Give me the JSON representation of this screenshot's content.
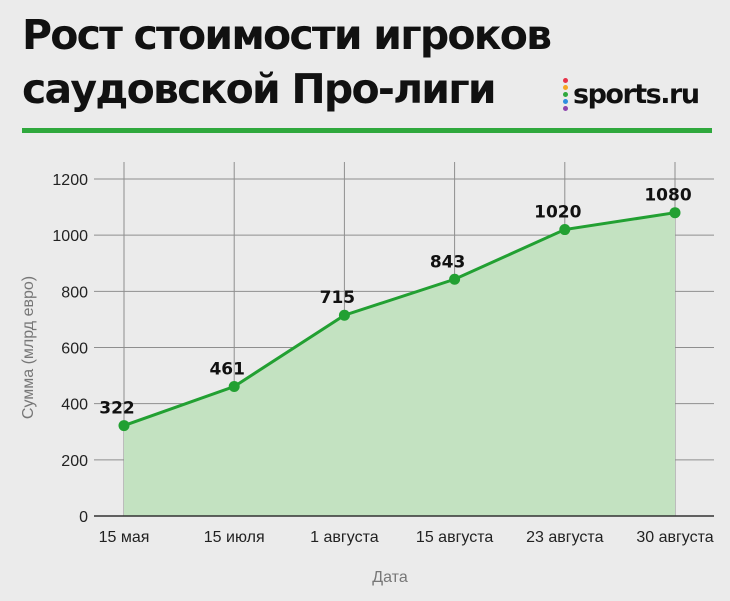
{
  "header": {
    "title_line1": "Рост стоимости игроков",
    "title_line2": "саудовской Про-лиги",
    "logo_text": "sports.ru",
    "logo_colors": [
      "#e7334a",
      "#f5a623",
      "#2fa83d",
      "#2d8ee0",
      "#8e44ad"
    ]
  },
  "colors": {
    "accent": "#2fa83d",
    "line": "#22a032",
    "area": "#c3e2c1",
    "grid": "#8e8e8e"
  },
  "chart_data": {
    "type": "area",
    "title": "Рост стоимости игроков саудовской Про-лиги",
    "xlabel": "Дата",
    "ylabel": "Сумма (млрд евро)",
    "categories": [
      "15 мая",
      "15 июля",
      "1 августа",
      "15 августа",
      "23 августа",
      "30 августа"
    ],
    "values": [
      322,
      461,
      715,
      843,
      1020,
      1080
    ],
    "data_labels": [
      "322",
      "461",
      "715",
      "843",
      "1020",
      "1080"
    ],
    "ylim": [
      0,
      1200
    ],
    "yticks": [
      0,
      200,
      400,
      600,
      800,
      1000,
      1200
    ],
    "grid": true,
    "legend": "none"
  }
}
